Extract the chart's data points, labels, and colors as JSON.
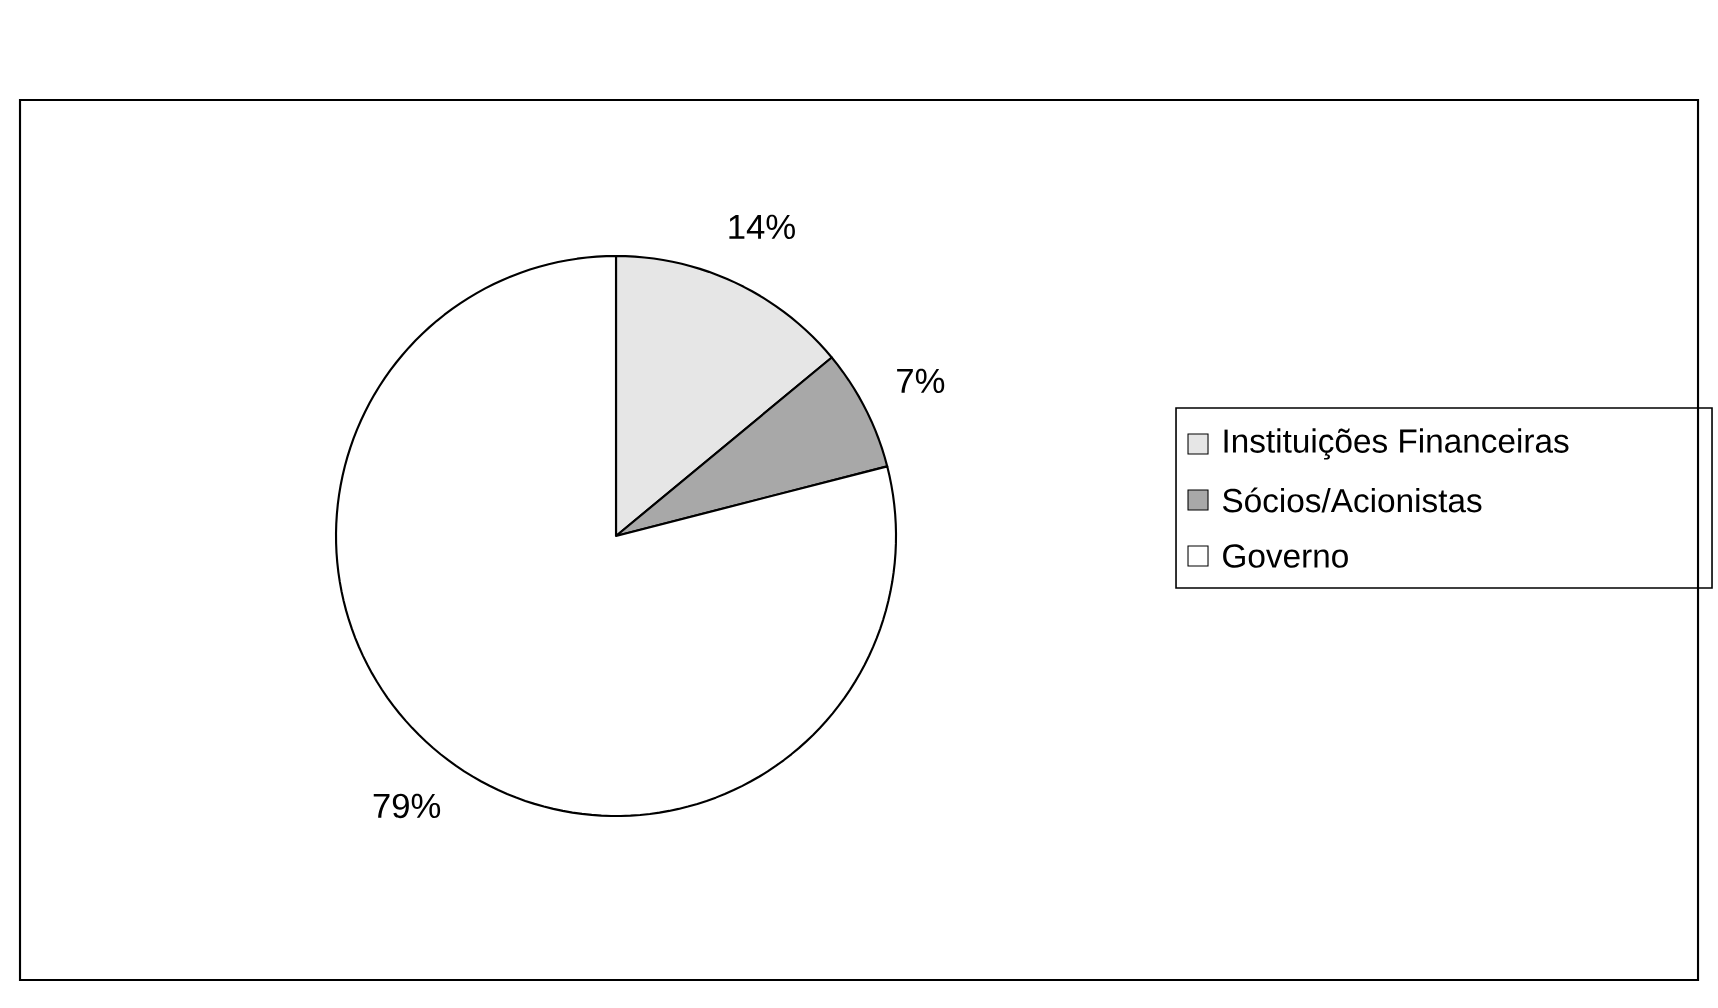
{
  "chart_data": {
    "type": "pie",
    "categories": [
      "Instituições Financeiras",
      "Sócios/Acionistas",
      "Governo"
    ],
    "values": [
      14,
      7,
      79
    ],
    "value_labels": [
      "14%",
      "7%",
      "79%"
    ],
    "colors": [
      "#e6e6e6",
      "#a8a8a8",
      "#ffffff"
    ],
    "legend": "right"
  }
}
